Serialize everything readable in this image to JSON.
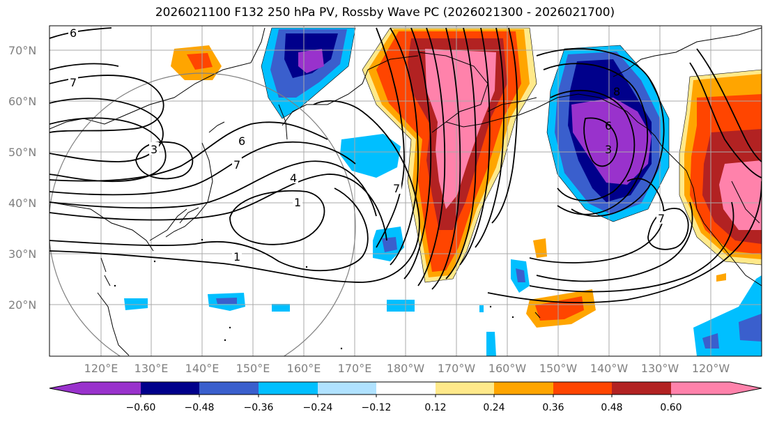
{
  "title": "2026021100 F132 250 hPa PV, Rossby Wave PC (2026021300 - 2026021700)",
  "lat_labels": [
    "70°N",
    "60°N",
    "50°N",
    "40°N",
    "30°N",
    "20°N"
  ],
  "lon_labels": [
    "120°E",
    "130°E",
    "140°E",
    "150°E",
    "160°E",
    "170°E",
    "180°W",
    "170°W",
    "160°W",
    "150°W",
    "140°W",
    "130°W",
    "120°W"
  ],
  "colorbar": {
    "colors": [
      "#9932cc",
      "#00008b",
      "#3a5fcd",
      "#00bfff",
      "#b0e2ff",
      "#ffffff",
      "#ffe98a",
      "#ffa500",
      "#ff4500",
      "#b22222",
      "#ff82ab"
    ],
    "tick_labels": [
      "−0.60",
      "−0.48",
      "−0.36",
      "−0.24",
      "−0.12",
      "0.12",
      "0.24",
      "0.36",
      "0.48",
      "0.60"
    ]
  },
  "contour_labels": [
    "6",
    "7",
    "3",
    "6",
    "7",
    "4",
    "1",
    "1",
    "7",
    "8",
    "6",
    "3",
    "7"
  ],
  "colors": {
    "positive_max": "#ff82ab",
    "negative_max": "#9932cc"
  }
}
